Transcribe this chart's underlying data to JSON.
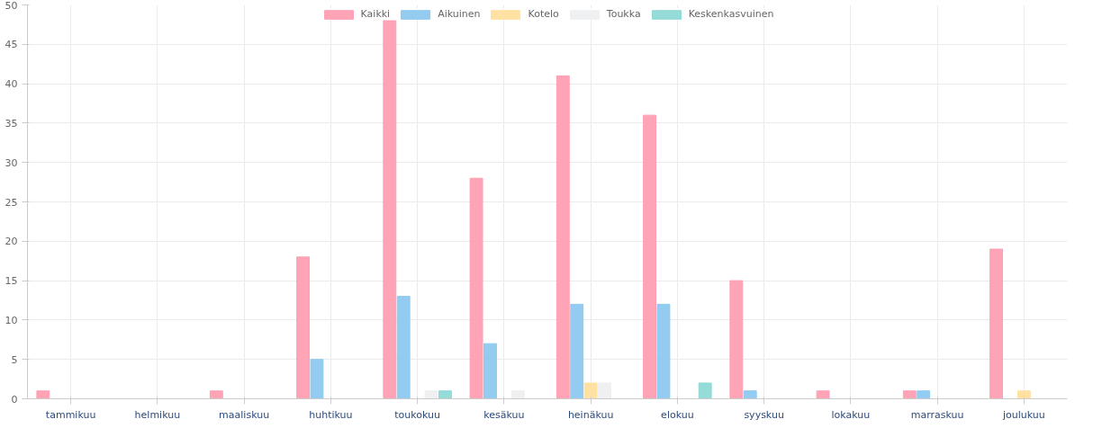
{
  "chart_data": {
    "type": "bar",
    "categories": [
      "tammikuu",
      "helmikuu",
      "maaliskuu",
      "huhtikuu",
      "toukokuu",
      "kesäkuu",
      "heinäkuu",
      "elokuu",
      "syyskuu",
      "lokakuu",
      "marraskuu",
      "joulukuu"
    ],
    "series": [
      {
        "name": "Kaikki",
        "color": "#ff9fb3",
        "values": [
          1,
          0,
          1,
          18,
          48,
          28,
          41,
          36,
          15,
          1,
          1,
          19
        ]
      },
      {
        "name": "Aikuinen",
        "color": "#8ec9f0",
        "values": [
          0,
          0,
          0,
          5,
          13,
          7,
          12,
          12,
          1,
          0,
          1,
          0
        ]
      },
      {
        "name": "Kotelo",
        "color": "#ffe09e",
        "values": [
          0,
          0,
          0,
          0,
          0,
          0,
          2,
          0,
          0,
          0,
          0,
          1
        ]
      },
      {
        "name": "Toukka",
        "color": "#eeeff1",
        "values": [
          0,
          0,
          0,
          0,
          1,
          1,
          2,
          0,
          0,
          0,
          0,
          0
        ]
      },
      {
        "name": "Keskenkasvuinen",
        "color": "#8fd9d6",
        "values": [
          0,
          0,
          0,
          0,
          1,
          0,
          0,
          2,
          0,
          0,
          0,
          0
        ]
      }
    ],
    "ylim": [
      0,
      50
    ],
    "yticks": [
      0,
      5,
      10,
      15,
      20,
      25,
      30,
      35,
      40,
      45,
      50
    ],
    "grid": true,
    "legend": "top"
  }
}
